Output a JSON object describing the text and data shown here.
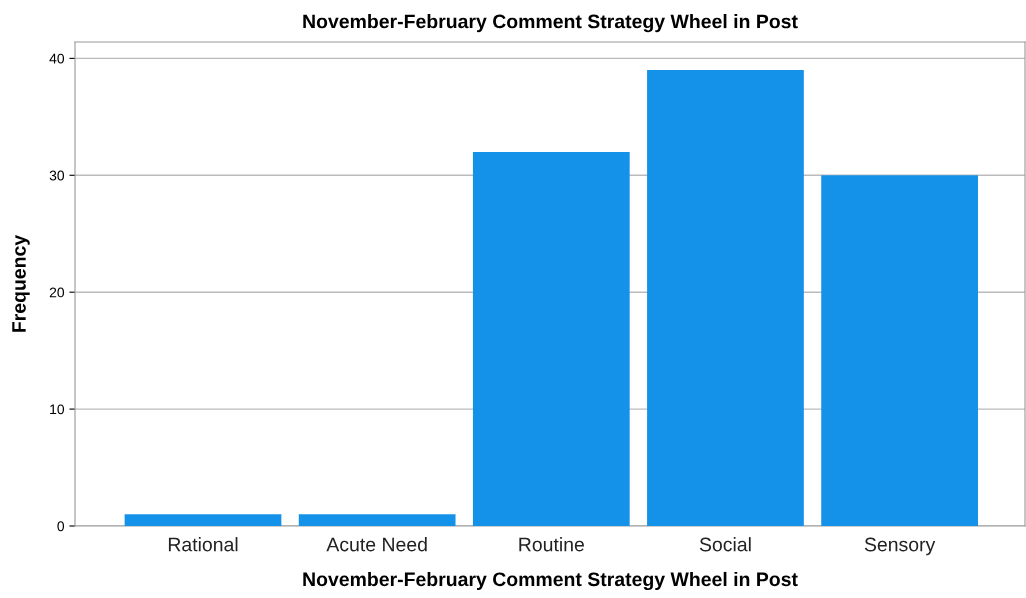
{
  "chart_data": {
    "type": "bar",
    "title": "November-February Comment Strategy Wheel in Post",
    "xlabel": "November-February Comment Strategy Wheel in Post",
    "ylabel": "Frequency",
    "categories": [
      "Rational",
      "Acute Need",
      "Routine",
      "Social",
      "Sensory"
    ],
    "values": [
      1,
      1,
      32,
      39,
      30
    ],
    "color": "#1491e8",
    "ylim": [
      0,
      41.4
    ],
    "yticks": [
      0,
      10,
      20,
      30,
      40
    ],
    "grid": "y",
    "legend": false
  }
}
